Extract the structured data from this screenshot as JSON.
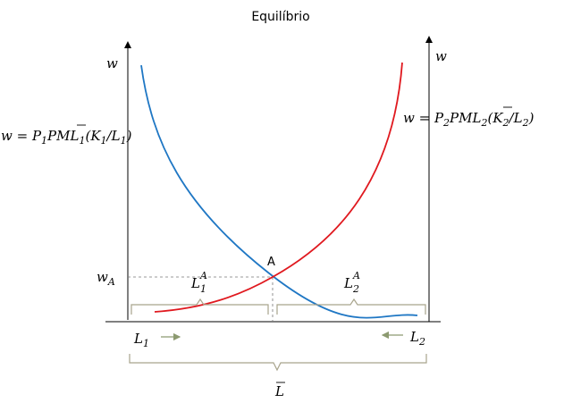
{
  "title": "Equilíbrio",
  "left_axis_label": "w",
  "right_axis_label": "w",
  "left_curve": {
    "lhs": "w = P",
    "sub_p": "1",
    "pml": "PML",
    "sub_pml": "1",
    "open": "(",
    "k": "K",
    "sub_k": "1",
    "slash": "/L",
    "sub_l": "1",
    "close": ")",
    "color": "#1f77c4"
  },
  "right_curve": {
    "lhs": "w = P",
    "sub_p": "2",
    "pml": "PML",
    "sub_pml": "2",
    "open": "(",
    "k": "K",
    "sub_k": "2",
    "slash": "/L",
    "sub_l": "2",
    "close": ")",
    "color": "#e0191f"
  },
  "equilibrium_point": "A",
  "wage_label": "w",
  "wage_sub": "A",
  "L1A": {
    "base": "L",
    "sup": "A",
    "sub": "1"
  },
  "L2A": {
    "base": "L",
    "sup": "A",
    "sub": "2"
  },
  "L1": {
    "base": "L",
    "sub": "1"
  },
  "L2": {
    "base": "L",
    "sub": "2"
  },
  "Lbar": "L",
  "colors": {
    "brace": "#a8a48c",
    "arrow": "#8c9a70",
    "axis": "#000000",
    "dash": "#777777"
  }
}
